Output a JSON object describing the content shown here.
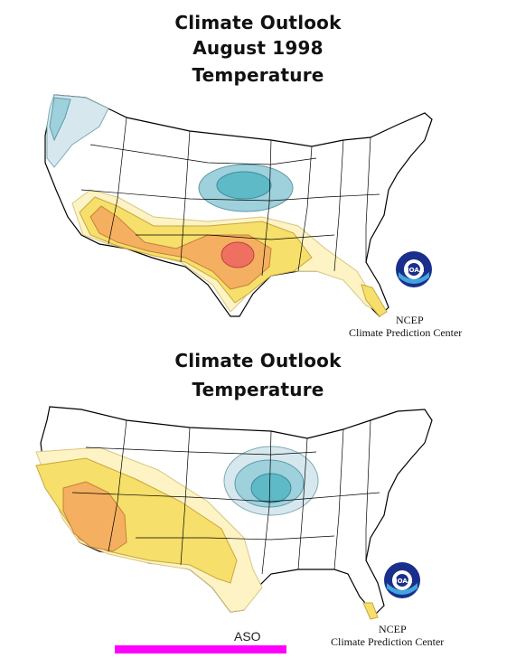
{
  "top_panel": {
    "title_lines": [
      "Climate Outlook",
      "August 1998",
      "Temperature"
    ],
    "credit_line1": "NCEP",
    "credit_line2": "Climate Prediction Center",
    "logo_text": "NOAA"
  },
  "bottom_panel": {
    "title_lines": [
      "Climate Outlook",
      "Temperature"
    ],
    "credit_line1": "NCEP",
    "credit_line2": "Climate Prediction Center",
    "season_label": "ASO",
    "logo_text": "NOAA"
  },
  "colors": {
    "above_light": "#fdf3c4",
    "above_mid": "#f6df6a",
    "above_strong": "#f4b060",
    "above_max": "#ef6f60",
    "below_light": "#d6e8ee",
    "below_mid": "#9ed1dc",
    "below_strong": "#5fbac8",
    "border": "#000000",
    "accent_bar": "#ff00ff",
    "noaa_blue": "#1a2f8c",
    "noaa_cyan": "#40a6e0"
  },
  "icons": {
    "logo": "noaa-logo-icon"
  }
}
